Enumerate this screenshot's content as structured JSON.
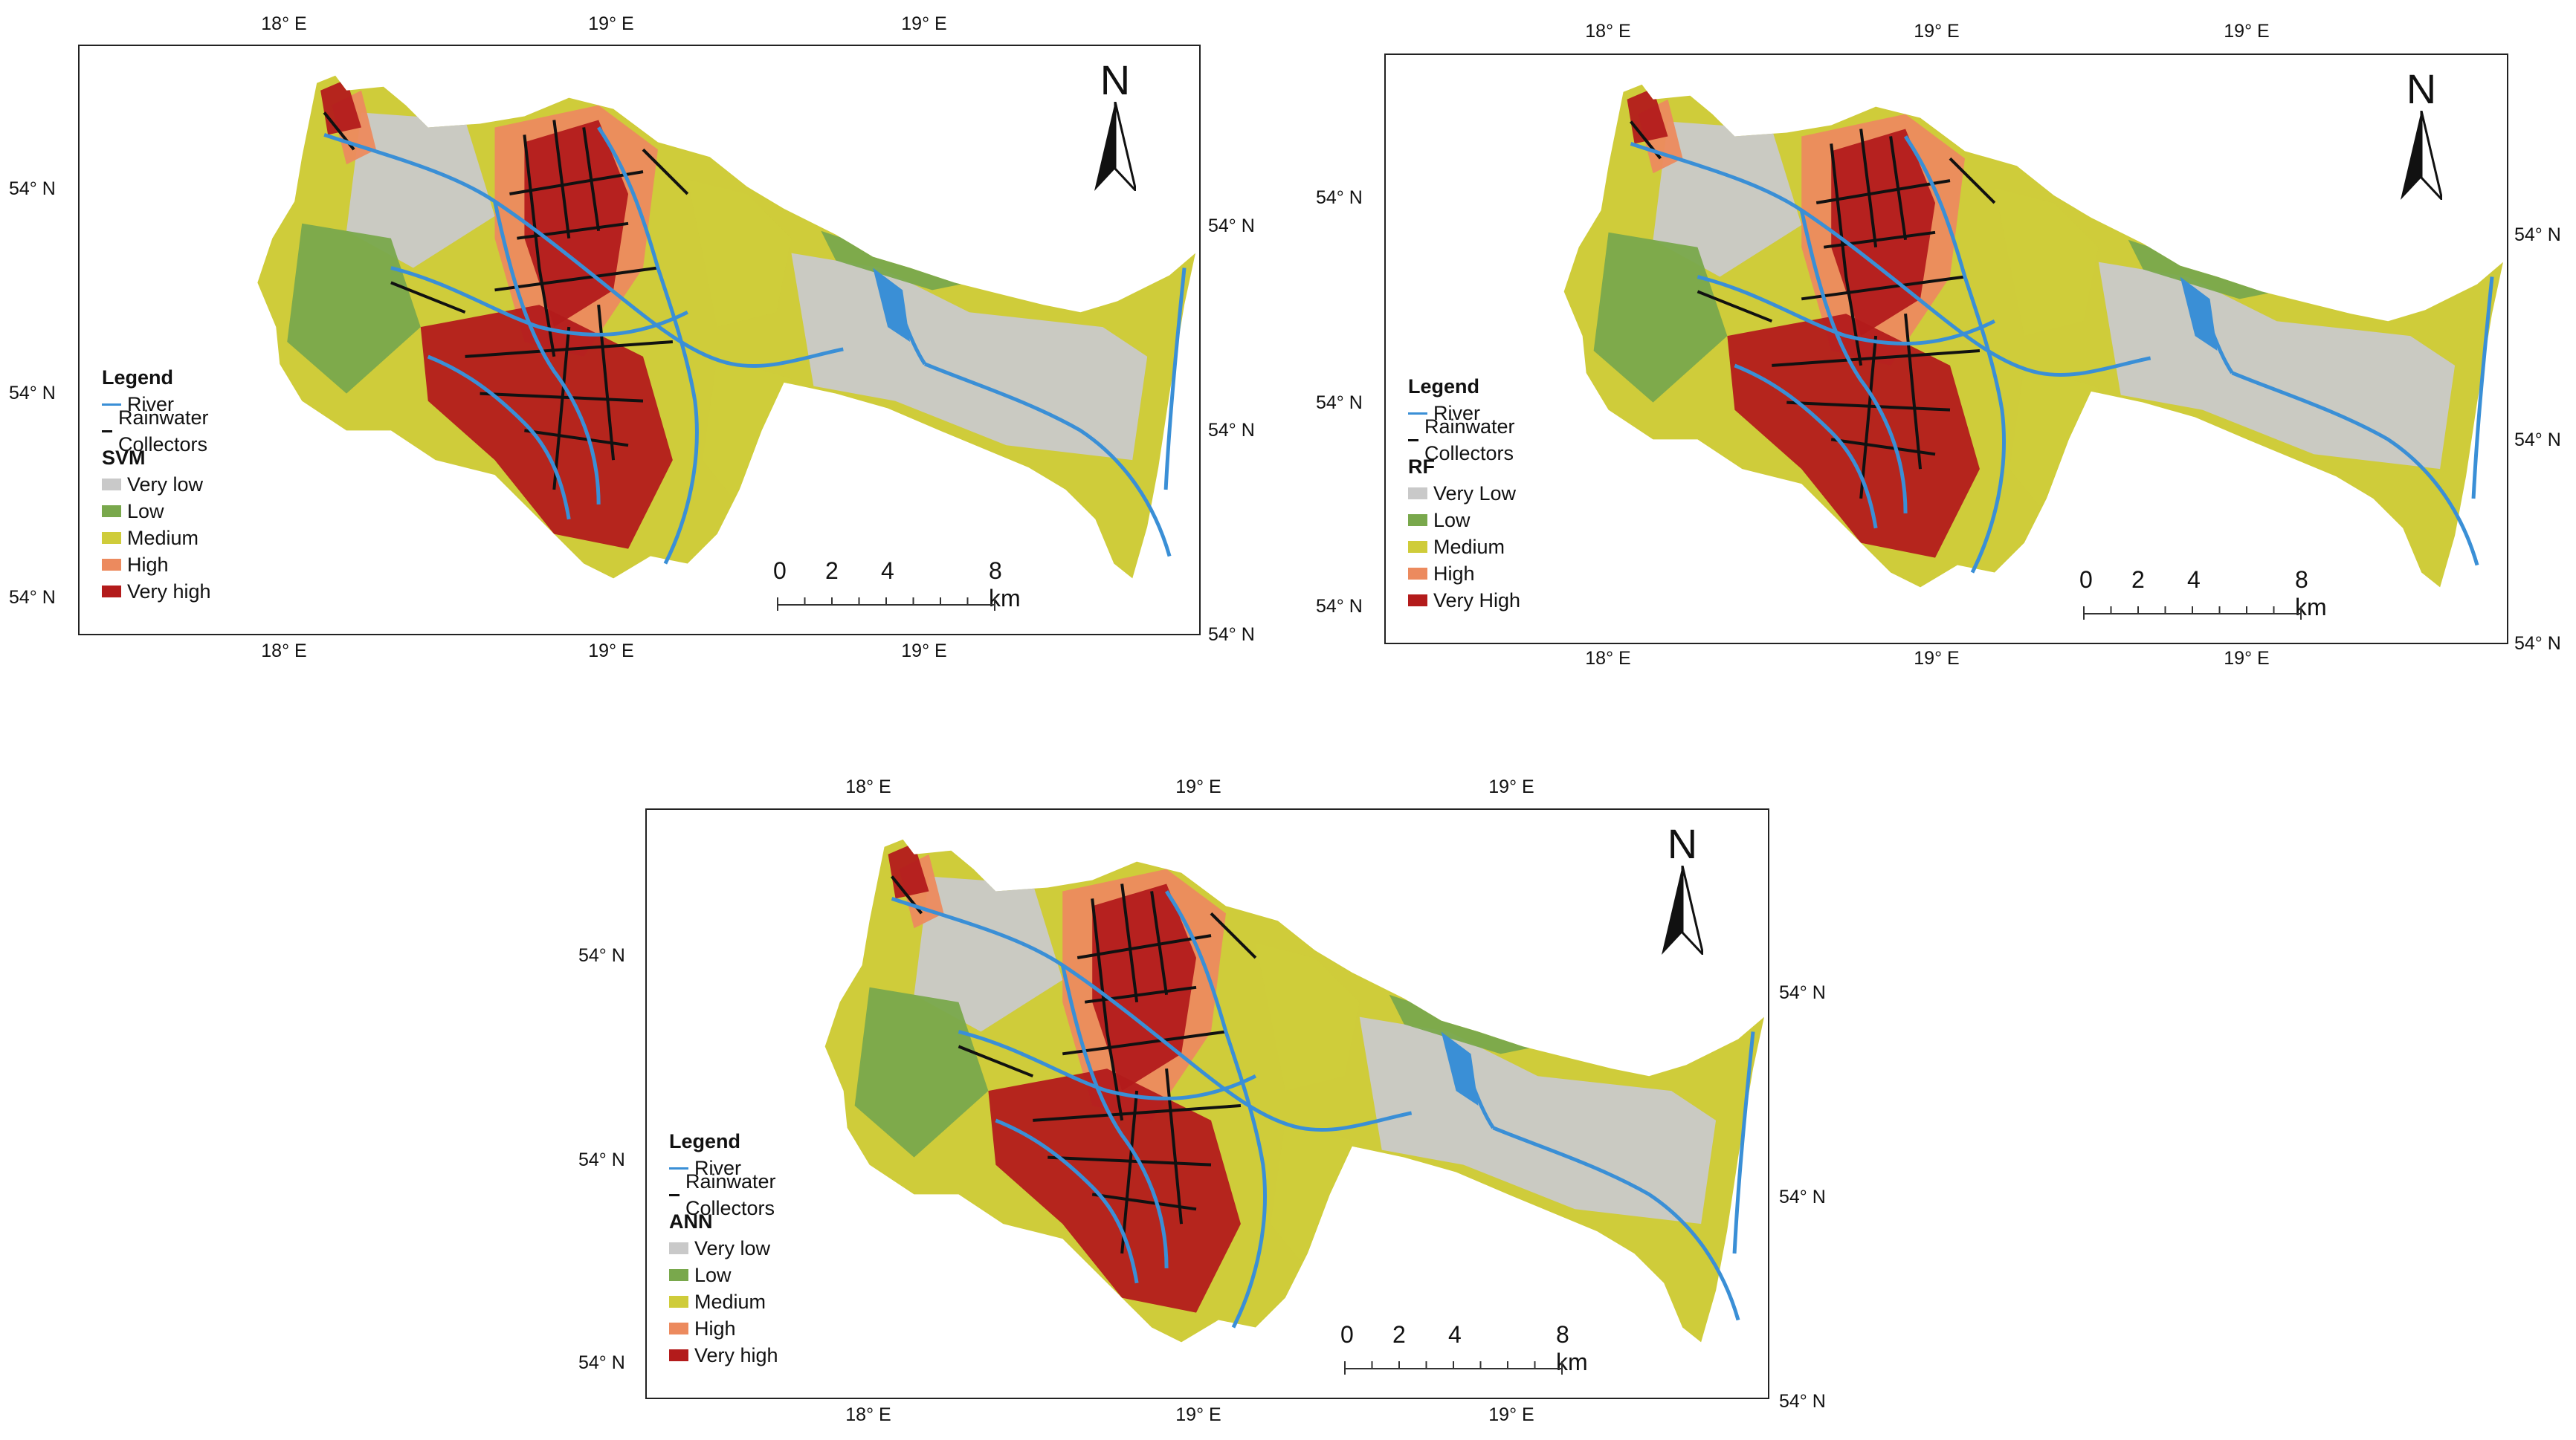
{
  "maps": [
    {
      "id": "svm",
      "model_label": "SVM",
      "top_ticks": [
        "18° E",
        "19° E",
        "19° E"
      ],
      "bottom_ticks": [
        "18° E",
        "19° E",
        "19° E"
      ],
      "left_ticks": [
        "54° N",
        "54° N",
        "54° N"
      ],
      "right_ticks": [
        "54° N",
        "54° N",
        "54° N"
      ],
      "north": "N",
      "legend_title": "Legend",
      "line_items": [
        {
          "label": "River",
          "color": "#3a8fd6"
        },
        {
          "label": "Rainwater Collectors",
          "color": "#111111"
        }
      ],
      "classes": [
        {
          "label": "Very low",
          "color": "#c9c9c9"
        },
        {
          "label": "Low",
          "color": "#79a84c"
        },
        {
          "label": "Medium",
          "color": "#cfcc3a"
        },
        {
          "label": "High",
          "color": "#ec8a5e"
        },
        {
          "label": "Very high",
          "color": "#b31b1b"
        }
      ],
      "scale_labels": [
        "0",
        "2",
        "4",
        "8 km"
      ]
    },
    {
      "id": "rf",
      "model_label": "RF",
      "top_ticks": [
        "18° E",
        "19° E",
        "19° E"
      ],
      "bottom_ticks": [
        "18° E",
        "19° E",
        "19° E"
      ],
      "left_ticks": [
        "54° N",
        "54° N",
        "54° N"
      ],
      "right_ticks": [
        "54° N",
        "54° N",
        "54° N"
      ],
      "north": "N",
      "legend_title": "Legend",
      "line_items": [
        {
          "label": "River",
          "color": "#3a8fd6"
        },
        {
          "label": "Rainwater Collectors",
          "color": "#111111"
        }
      ],
      "classes": [
        {
          "label": "Very Low",
          "color": "#c9c9c9"
        },
        {
          "label": "Low",
          "color": "#79a84c"
        },
        {
          "label": "Medium",
          "color": "#cfcc3a"
        },
        {
          "label": "High",
          "color": "#ec8a5e"
        },
        {
          "label": "Very High",
          "color": "#b31b1b"
        }
      ],
      "scale_labels": [
        "0",
        "2",
        "4",
        "8 km"
      ]
    },
    {
      "id": "ann",
      "model_label": "ANN",
      "top_ticks": [
        "18° E",
        "19° E",
        "19° E"
      ],
      "bottom_ticks": [
        "18° E",
        "19° E",
        "19° E"
      ],
      "left_ticks": [
        "54° N",
        "54° N",
        "54° N"
      ],
      "right_ticks": [
        "54° N",
        "54° N",
        "54° N"
      ],
      "north": "N",
      "legend_title": "Legend",
      "line_items": [
        {
          "label": "River",
          "color": "#3a8fd6"
        },
        {
          "label": "Rainwater Collectors",
          "color": "#111111"
        }
      ],
      "classes": [
        {
          "label": "Very low",
          "color": "#c9c9c9"
        },
        {
          "label": "Low",
          "color": "#79a84c"
        },
        {
          "label": "Medium",
          "color": "#cfcc3a"
        },
        {
          "label": "High",
          "color": "#ec8a5e"
        },
        {
          "label": "Very high",
          "color": "#b31b1b"
        }
      ],
      "scale_labels": [
        "0",
        "2",
        "4",
        "8 km"
      ]
    }
  ]
}
